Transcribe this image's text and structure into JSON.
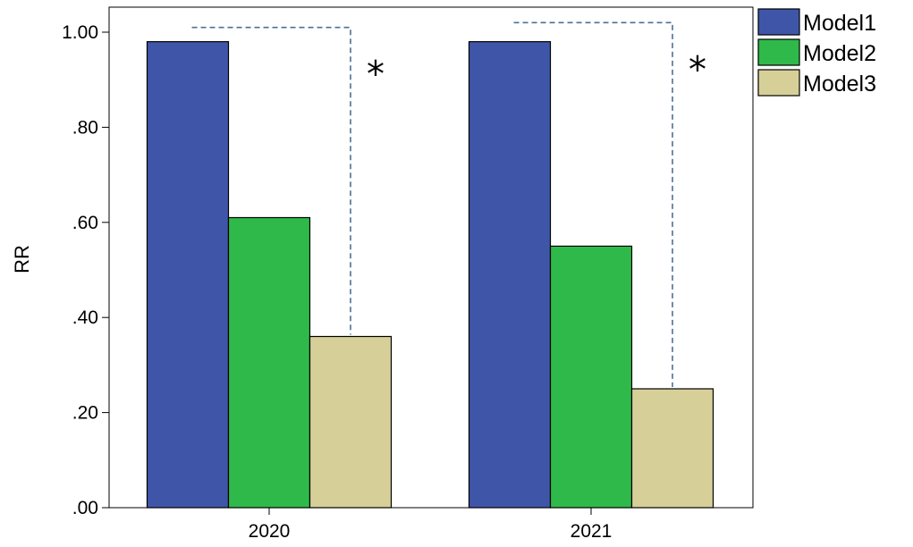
{
  "chart_data": {
    "type": "bar",
    "categories": [
      "2020",
      "2021"
    ],
    "series": [
      {
        "name": "Model1",
        "values": [
          0.98,
          0.98
        ],
        "color": "#3f56a8"
      },
      {
        "name": "Model2",
        "values": [
          0.61,
          0.55
        ],
        "color": "#2fb94a"
      },
      {
        "name": "Model3",
        "values": [
          0.36,
          0.25
        ],
        "color": "#d6cf98"
      }
    ],
    "ylabel": "RR",
    "xlabel": "",
    "ylim": [
      0,
      1
    ],
    "yticks": [
      ".00",
      ".20",
      ".40",
      ".60",
      ".80",
      "1.00"
    ],
    "legend_position": "top-right",
    "grid": false,
    "annotations": [
      {
        "category": "2020",
        "from_series": 0,
        "to_series": 2,
        "bracket_top": 1.01,
        "text": "*"
      },
      {
        "category": "2021",
        "from_series": 0,
        "to_series": 2,
        "bracket_top": 1.02,
        "text": "*"
      }
    ]
  }
}
